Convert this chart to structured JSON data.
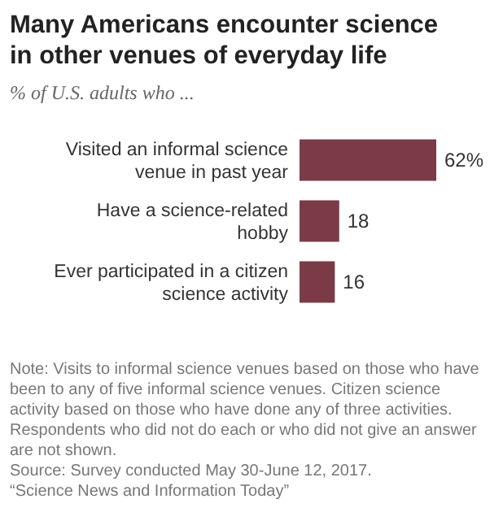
{
  "chart_data": {
    "type": "bar",
    "orientation": "horizontal",
    "title": "Many Americans encounter science in other venues of everyday life",
    "subtitle": "% of U.S. adults who ...",
    "categories": [
      "Visited an informal science venue in past year",
      "Have a science-related hobby",
      "Ever participated in a citizen science activity"
    ],
    "values": [
      62,
      18,
      16
    ],
    "color": "#7a3b47",
    "value_labels": [
      "62%",
      "18",
      "16"
    ],
    "annotations": [
      "Note: Visits to informal science venues based on those who have been to any of five informal science venues. Citizen science activity based on those who have done any of three activities. Respondents who did not do each or who did not give an answer are not shown.",
      "Source: Survey conducted May 30-June 12, 2017.",
      "“Science News and Information Today”"
    ]
  }
}
